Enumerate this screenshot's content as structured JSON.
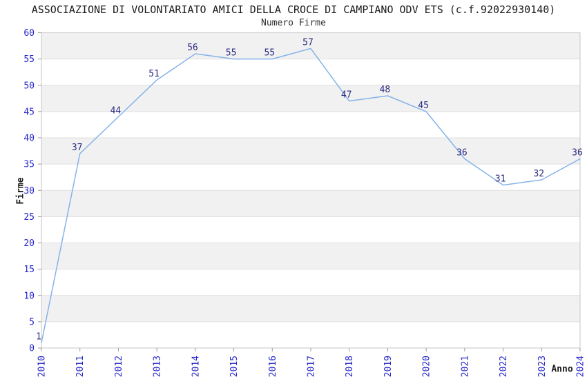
{
  "chart_data": {
    "type": "line",
    "title": "ASSOCIAZIONE DI VOLONTARIATO AMICI DELLA CROCE DI CAMPIANO ODV ETS (c.f.92022930140)",
    "subtitle": "Numero Firme",
    "xlabel": "Anno",
    "ylabel": "Firme",
    "x": [
      "2010",
      "2011",
      "2012",
      "2013",
      "2014",
      "2015",
      "2016",
      "2017",
      "2018",
      "2019",
      "2020",
      "2021",
      "2022",
      "2023",
      "2024"
    ],
    "values": [
      1,
      37,
      44,
      51,
      56,
      55,
      55,
      57,
      47,
      48,
      45,
      36,
      31,
      32,
      36
    ],
    "ylim": [
      0,
      60
    ],
    "ytick_step": 5,
    "legend": "none",
    "grid": "horizontal-bands-alternating",
    "markers": "none",
    "data_labels_shown": true,
    "x_tick_label_rotation_deg": -90,
    "colors": {
      "line": "#85b2e9",
      "band_gray": "#f1f1f1",
      "band_white": "#ffffff",
      "gridline": "#e0e0e0",
      "plot_border": "#cfcfcf",
      "tick_mark": "#9a9a9a",
      "tick_label": "#2626cc",
      "data_label": "#2b2b82",
      "title": "#1c1c1c",
      "axis_label": "#1c1c1c"
    }
  }
}
